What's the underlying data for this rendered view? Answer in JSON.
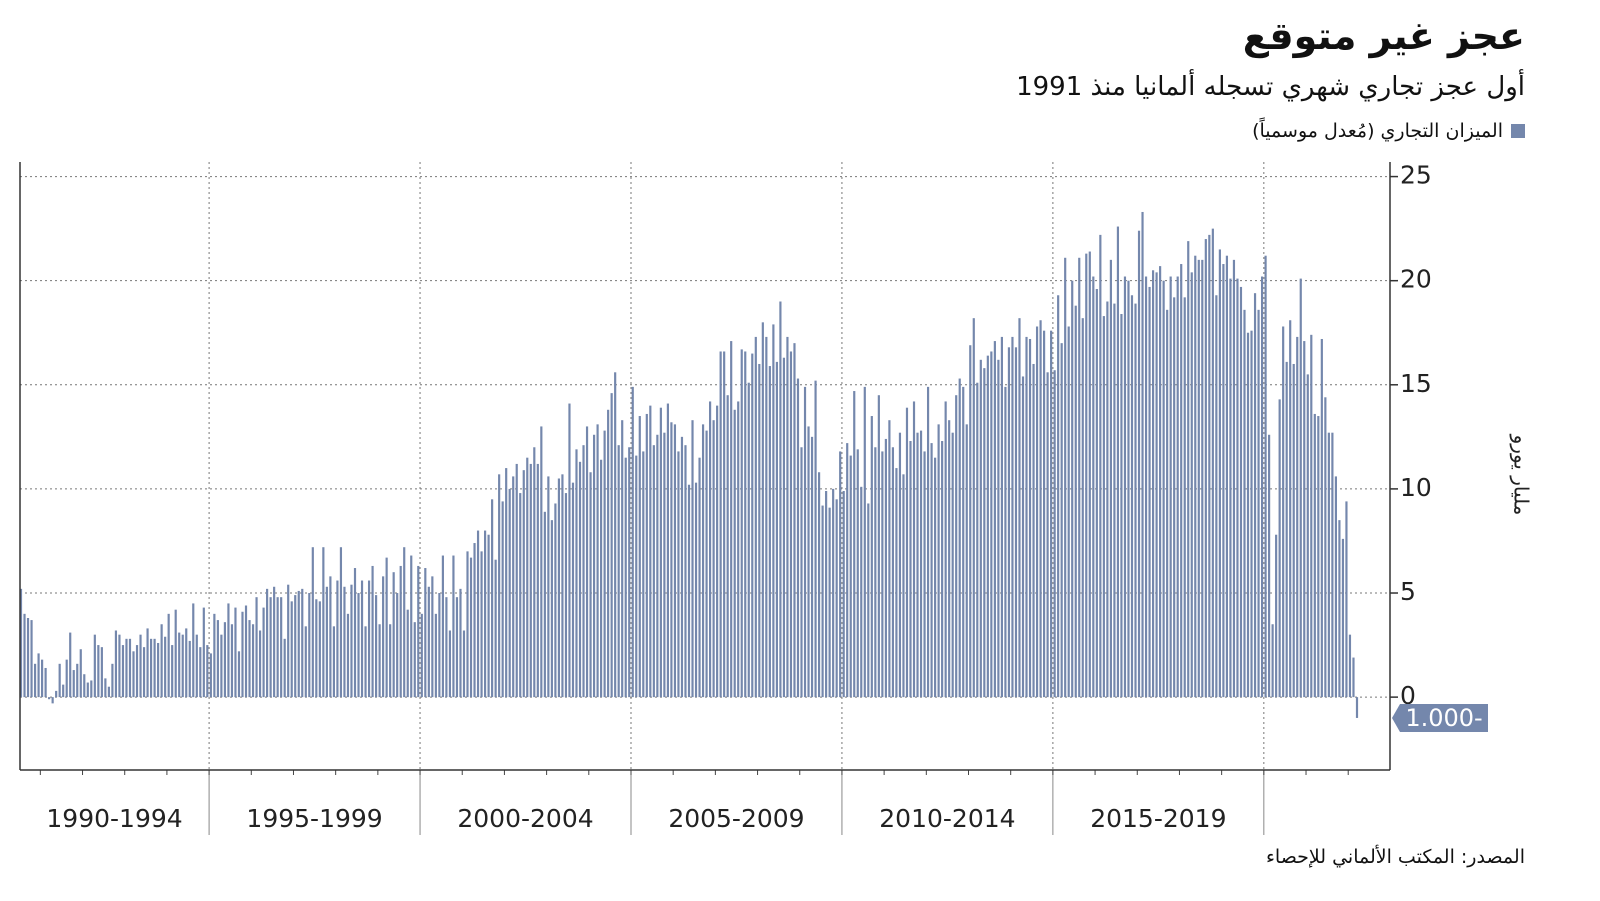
{
  "chart_data": {
    "type": "bar",
    "title": "عجز غير متوقع",
    "subtitle": "أول عجز تجاري شهري تسجله ألمانيا منذ 1991",
    "series_name": "الميزان التجاري (مُعدل موسمياً)",
    "y_axis_label": "مليار يورو",
    "source": "المصدر: المكتب الألماني للإحصاء",
    "color": "#7487ac",
    "ylim": [
      -3.5,
      25.7
    ],
    "yticks": [
      0,
      5,
      10,
      15,
      20,
      25
    ],
    "grid": true,
    "groups": [
      {
        "label": "1990-1994",
        "values": [
          5.2,
          4.0,
          3.8,
          3.7,
          1.6,
          2.1,
          1.8,
          1.4,
          -0.1,
          -0.3,
          0.3,
          1.6,
          0.6,
          1.8,
          3.1,
          1.3,
          1.6,
          2.3,
          1.1,
          0.7,
          0.8,
          3.0,
          2.5,
          2.4,
          0.9,
          0.5,
          1.6,
          3.2,
          3.0,
          2.5,
          2.8,
          2.8,
          2.2,
          2.5,
          3.0,
          2.4,
          3.3,
          2.8,
          2.8,
          2.6,
          3.5,
          2.9,
          4.0,
          2.5,
          4.2,
          3.1,
          3.0,
          3.3,
          2.7,
          4.5,
          3.0,
          2.4,
          4.3,
          2.5
        ]
      },
      {
        "label": "1995-1999",
        "values": [
          2.1,
          4.0,
          3.7,
          3.0,
          3.6,
          4.5,
          3.5,
          4.3,
          2.2,
          4.1,
          4.4,
          3.7,
          3.5,
          4.8,
          3.2,
          4.3,
          5.2,
          4.8,
          5.3,
          4.8,
          4.8,
          2.8,
          5.4,
          4.6,
          4.9,
          5.1,
          5.2,
          3.4,
          5.0,
          7.2,
          4.7,
          4.6,
          7.2,
          5.3,
          5.8,
          3.4,
          5.6,
          7.2,
          5.3,
          4.0,
          5.4,
          6.2,
          5.0,
          5.6,
          3.4,
          5.6,
          6.3,
          4.9,
          3.5,
          5.8,
          6.7,
          3.5,
          6.0,
          5.0,
          6.3,
          7.2,
          4.2,
          6.8,
          3.6,
          6.3
        ]
      },
      {
        "label": "2000-2004",
        "values": [
          4.0,
          6.2,
          5.3,
          5.8,
          4.0,
          5.0,
          6.8,
          4.8,
          3.2,
          6.8,
          4.8,
          5.2,
          3.2,
          7.0,
          6.7,
          7.4,
          8.0,
          7.0,
          8.0,
          7.8,
          9.5,
          6.6,
          10.7,
          9.4,
          11.0,
          10.0,
          10.6,
          11.2,
          9.8,
          10.9,
          11.5,
          11.2,
          12.0,
          11.2,
          13.0,
          8.9,
          10.6,
          8.5,
          9.3,
          10.5,
          10.7,
          9.8,
          14.1,
          10.3,
          11.9,
          11.3,
          12.1,
          13.0,
          10.8,
          12.6,
          13.1,
          11.4,
          12.8,
          13.8,
          14.6,
          15.6,
          12.1,
          13.3,
          11.5,
          12.0
        ]
      },
      {
        "label": "2005-2009",
        "values": [
          14.9,
          11.6,
          13.5,
          11.8,
          13.6,
          14.0,
          12.1,
          12.6,
          13.9,
          12.7,
          14.1,
          13.2,
          13.1,
          11.8,
          12.5,
          12.1,
          10.2,
          13.3,
          10.3,
          11.5,
          13.1,
          12.8,
          14.2,
          13.3,
          14.0,
          16.6,
          16.6,
          14.5,
          17.1,
          13.8,
          14.2,
          16.7,
          16.6,
          15.1,
          16.5,
          17.3,
          16.0,
          18.0,
          17.3,
          15.9,
          17.9,
          16.1,
          19.0,
          16.3,
          17.3,
          16.6,
          17.0,
          15.3,
          12.0,
          14.9,
          13.0,
          12.5,
          15.2,
          10.8,
          9.2,
          9.9,
          9.1,
          10.0,
          9.5,
          11.8
        ]
      },
      {
        "label": "2010-2014",
        "values": [
          9.9,
          12.2,
          11.6,
          14.7,
          11.9,
          10.1,
          14.9,
          9.3,
          13.5,
          12.0,
          14.5,
          11.8,
          12.4,
          13.3,
          12.0,
          11.0,
          12.7,
          10.7,
          13.9,
          12.3,
          14.2,
          12.7,
          12.8,
          11.8,
          14.9,
          12.2,
          11.5,
          13.1,
          12.3,
          14.2,
          13.3,
          12.7,
          14.5,
          15.3,
          14.9,
          13.1,
          16.9,
          18.2,
          15.1,
          16.2,
          15.8,
          16.4,
          16.6,
          17.1,
          16.2,
          17.3,
          14.9,
          16.8,
          17.3,
          16.8,
          18.2,
          15.4,
          17.3,
          17.2,
          16.0,
          17.8,
          18.1,
          17.6,
          15.6,
          17.6
        ]
      },
      {
        "label": "2015-2019",
        "values": [
          15.7,
          19.3,
          17.0,
          21.1,
          17.8,
          20.0,
          18.8,
          21.1,
          18.2,
          21.3,
          21.4,
          20.2,
          19.6,
          22.2,
          18.3,
          19.0,
          21.0,
          18.9,
          22.6,
          18.4,
          20.2,
          20.0,
          19.3,
          18.9,
          22.4,
          23.3,
          20.2,
          19.7,
          20.5,
          20.4,
          20.7,
          20.0,
          18.6,
          20.2,
          19.2,
          20.2,
          20.8,
          19.2,
          21.9,
          20.4,
          21.2,
          21.0,
          21.0,
          22.0,
          22.2,
          22.5,
          19.3,
          21.5,
          20.8,
          21.2,
          20.1,
          21.0,
          20.1,
          19.7,
          18.6,
          17.5,
          17.6,
          19.4,
          18.6,
          20.2
        ]
      },
      {
        "label": null,
        "values": [
          21.2,
          12.6,
          3.5,
          7.8,
          14.3,
          17.8,
          16.1,
          18.1,
          16.0,
          17.3,
          20.1,
          17.1,
          15.5,
          17.4,
          13.6,
          13.5,
          17.2,
          14.4,
          12.7,
          12.7,
          10.6,
          8.5,
          7.6,
          9.4,
          3.0,
          1.9,
          -1.0
        ],
        "value_labels": [
          null,
          null,
          null,
          null,
          null,
          null,
          null,
          null,
          null,
          null,
          null,
          null,
          null,
          null,
          null,
          null,
          null,
          null,
          null,
          null,
          null,
          null,
          null,
          null,
          null,
          null,
          "1.000-"
        ]
      }
    ]
  }
}
